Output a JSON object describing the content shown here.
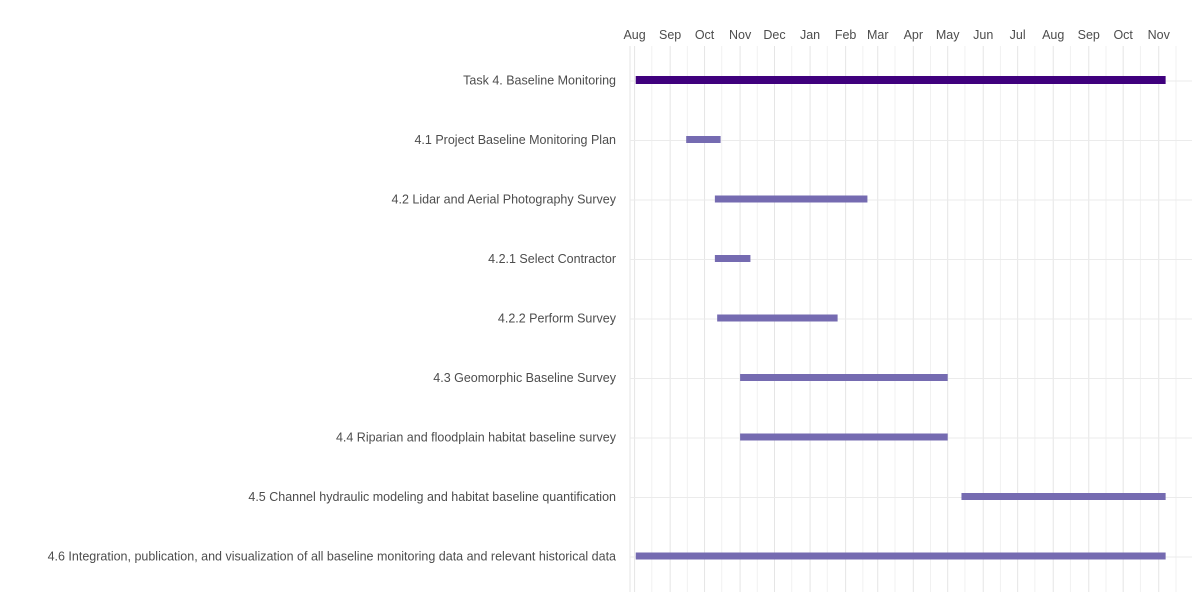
{
  "chart_data": {
    "type": "gantt",
    "x_axis": {
      "position": "top",
      "range": [
        "2017-08-01",
        "2018-11-30"
      ],
      "ticks": [
        {
          "date": "2017-08-01",
          "label": "Aug"
        },
        {
          "date": "2017-09-01",
          "label": "Sep"
        },
        {
          "date": "2017-10-01",
          "label": "Oct"
        },
        {
          "date": "2017-11-01",
          "label": "Nov"
        },
        {
          "date": "2017-12-01",
          "label": "Dec"
        },
        {
          "date": "2018-01-01",
          "label": "Jan"
        },
        {
          "date": "2018-02-01",
          "label": "Feb"
        },
        {
          "date": "2018-03-01",
          "label": "Mar"
        },
        {
          "date": "2018-04-01",
          "label": "Apr"
        },
        {
          "date": "2018-05-01",
          "label": "May"
        },
        {
          "date": "2018-06-01",
          "label": "Jun"
        },
        {
          "date": "2018-07-01",
          "label": "Jul"
        },
        {
          "date": "2018-08-01",
          "label": "Aug"
        },
        {
          "date": "2018-09-01",
          "label": "Sep"
        },
        {
          "date": "2018-10-01",
          "label": "Oct"
        },
        {
          "date": "2018-11-01",
          "label": "Nov"
        }
      ]
    },
    "grid": true,
    "tasks": [
      {
        "label": "Task 4. Baseline Monitoring",
        "start": "2017-08-02",
        "end": "2018-11-07",
        "color": "#3f007d"
      },
      {
        "label": "4.1 Project Baseline Monitoring Plan",
        "start": "2017-09-15",
        "end": "2017-10-15",
        "color": "#756bb1"
      },
      {
        "label": "4.2 Lidar and Aerial Photography Survey",
        "start": "2017-10-10",
        "end": "2018-02-20",
        "color": "#756bb1"
      },
      {
        "label": "4.2.1 Select Contractor",
        "start": "2017-10-10",
        "end": "2017-11-10",
        "color": "#756bb1"
      },
      {
        "label": "4.2.2 Perform Survey",
        "start": "2017-10-12",
        "end": "2018-01-25",
        "color": "#756bb1"
      },
      {
        "label": "4.3 Geomorphic Baseline Survey",
        "start": "2017-11-01",
        "end": "2018-05-01",
        "color": "#756bb1"
      },
      {
        "label": "4.4 Riparian and floodplain habitat baseline survey",
        "start": "2017-11-01",
        "end": "2018-05-01",
        "color": "#756bb1"
      },
      {
        "label": "4.5 Channel hydraulic modeling and habitat baseline quantification",
        "start": "2018-05-13",
        "end": "2018-11-07",
        "color": "#756bb1"
      },
      {
        "label": "4.6 Integration, publication, and visualization of all baseline monitoring data and relevant historical data",
        "start": "2017-08-02",
        "end": "2018-11-07",
        "color": "#756bb1"
      }
    ]
  }
}
